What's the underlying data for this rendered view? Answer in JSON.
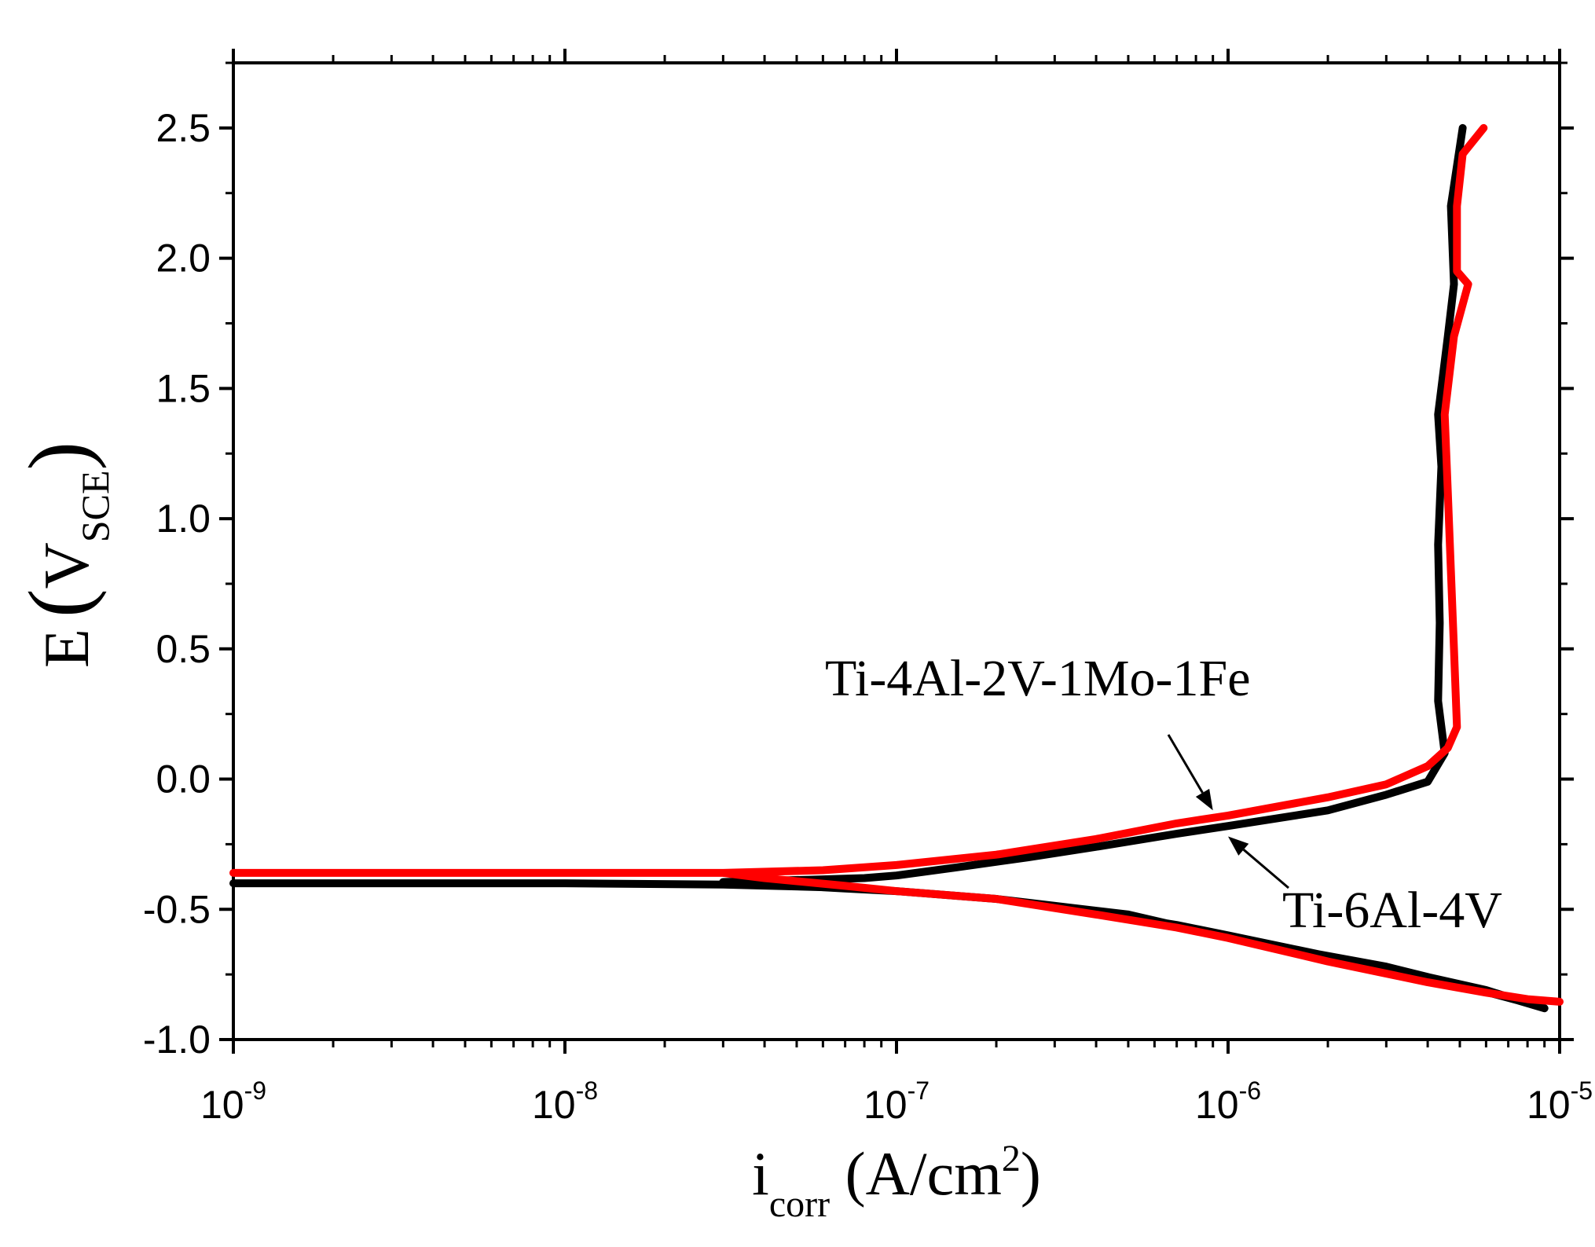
{
  "chart_data": {
    "type": "line",
    "title": "",
    "xlabel": {
      "main": "i",
      "sub": "corr",
      "unit_prefix": " (A/cm",
      "unit_sup": "2",
      "unit_suffix": ")"
    },
    "ylabel": {
      "main": "E",
      "open": "(",
      "var": "V",
      "sub": "SCE",
      "close": ")"
    },
    "xscale": "log",
    "xlim": [
      1e-09,
      1e-05
    ],
    "ylim": [
      -1.0,
      2.75
    ],
    "x_ticks": [
      {
        "value": 1e-09,
        "base": "10",
        "exp": "-9"
      },
      {
        "value": 1e-08,
        "base": "10",
        "exp": "-8"
      },
      {
        "value": 1e-07,
        "base": "10",
        "exp": "-7"
      },
      {
        "value": 1e-06,
        "base": "10",
        "exp": "-6"
      },
      {
        "value": 1e-05,
        "base": "10",
        "exp": "-5"
      }
    ],
    "y_ticks": [
      {
        "value": -1.0,
        "label": "-1.0"
      },
      {
        "value": -0.5,
        "label": "-0.5"
      },
      {
        "value": 0.0,
        "label": "0.0"
      },
      {
        "value": 0.5,
        "label": "0.5"
      },
      {
        "value": 1.0,
        "label": "1.0"
      },
      {
        "value": 1.5,
        "label": "1.5"
      },
      {
        "value": 2.0,
        "label": "2.0"
      },
      {
        "value": 2.5,
        "label": "2.5"
      }
    ],
    "series": [
      {
        "name": "Ti-6Al-4V",
        "color": "#000000",
        "points": [
          [
            1e-09,
            -0.4
          ],
          [
            1e-08,
            -0.4
          ],
          [
            3e-08,
            -0.405
          ],
          [
            6e-08,
            -0.415
          ],
          [
            1e-07,
            -0.43
          ],
          [
            2e-07,
            -0.46
          ],
          [
            4e-07,
            -0.51
          ],
          [
            7e-07,
            -0.56
          ],
          [
            1e-06,
            -0.6
          ],
          [
            2e-06,
            -0.68
          ],
          [
            4e-06,
            -0.76
          ],
          [
            6e-06,
            -0.81
          ],
          [
            8e-06,
            -0.86
          ],
          [
            9e-06,
            -0.88
          ],
          [
            9e-06,
            -0.88
          ],
          [
            7.5e-06,
            -0.85
          ],
          [
            5e-06,
            -0.79
          ],
          [
            3e-06,
            -0.72
          ],
          [
            1.5e-06,
            -0.65
          ],
          [
            8e-07,
            -0.58
          ],
          [
            5e-07,
            -0.52
          ],
          [
            2e-07,
            -0.46
          ],
          [
            1e-07,
            -0.43
          ],
          [
            7e-08,
            -0.42
          ],
          [
            5e-08,
            -0.41
          ],
          [
            3e-08,
            -0.395
          ],
          [
            6e-08,
            -0.385
          ],
          [
            8e-08,
            -0.38
          ],
          [
            1e-07,
            -0.37
          ],
          [
            1.5e-07,
            -0.34
          ],
          [
            2.5e-07,
            -0.3
          ],
          [
            4e-07,
            -0.26
          ],
          [
            7e-07,
            -0.21
          ],
          [
            1e-06,
            -0.18
          ],
          [
            2e-06,
            -0.12
          ],
          [
            3e-06,
            -0.06
          ],
          [
            4e-06,
            -0.01
          ],
          [
            4.5e-06,
            0.1
          ],
          [
            4.3e-06,
            0.3
          ],
          [
            4.35e-06,
            0.6
          ],
          [
            4.3e-06,
            0.9
          ],
          [
            4.4e-06,
            1.2
          ],
          [
            4.3e-06,
            1.4
          ],
          [
            4.6e-06,
            1.7
          ],
          [
            4.8e-06,
            1.9
          ],
          [
            4.7e-06,
            2.2
          ],
          [
            5.1e-06,
            2.5
          ]
        ]
      },
      {
        "name": "Ti-4Al-2V-1Mo-1Fe",
        "color": "#ff0000",
        "points": [
          [
            1e-09,
            -0.36
          ],
          [
            1e-08,
            -0.36
          ],
          [
            3e-08,
            -0.36
          ],
          [
            6e-08,
            -0.35
          ],
          [
            1e-07,
            -0.33
          ],
          [
            2e-07,
            -0.29
          ],
          [
            4e-07,
            -0.23
          ],
          [
            7e-07,
            -0.17
          ],
          [
            1e-06,
            -0.14
          ],
          [
            2e-06,
            -0.07
          ],
          [
            3e-06,
            -0.02
          ],
          [
            4e-06,
            0.05
          ],
          [
            4.6e-06,
            0.12
          ],
          [
            4.9e-06,
            0.2
          ],
          [
            4.8e-06,
            0.5
          ],
          [
            4.7e-06,
            0.8
          ],
          [
            4.6e-06,
            1.1
          ],
          [
            4.5e-06,
            1.4
          ],
          [
            4.8e-06,
            1.7
          ],
          [
            5.3e-06,
            1.9
          ],
          [
            4.9e-06,
            1.95
          ],
          [
            4.9e-06,
            2.2
          ],
          [
            5.1e-06,
            2.4
          ],
          [
            5.9e-06,
            2.5
          ],
          [
            5.9e-06,
            2.5
          ],
          [
            5.1e-06,
            2.4
          ],
          [
            4.9e-06,
            2.2
          ],
          [
            4.9e-06,
            1.95
          ],
          [
            5.3e-06,
            1.9
          ],
          [
            4.8e-06,
            1.7
          ],
          [
            4.5e-06,
            1.4
          ],
          [
            4.6e-06,
            1.1
          ],
          [
            4.7e-06,
            0.8
          ],
          [
            4.8e-06,
            0.5
          ],
          [
            4.9e-06,
            0.2
          ],
          [
            4.6e-06,
            0.12
          ],
          [
            4e-06,
            0.05
          ],
          [
            3e-06,
            -0.02
          ],
          [
            2e-06,
            -0.07
          ],
          [
            1e-06,
            -0.14
          ],
          [
            7e-07,
            -0.17
          ],
          [
            4e-07,
            -0.23
          ],
          [
            2e-07,
            -0.29
          ],
          [
            1e-07,
            -0.33
          ],
          [
            6e-08,
            -0.35
          ],
          [
            3e-08,
            -0.36
          ],
          [
            4e-08,
            -0.38
          ],
          [
            7e-08,
            -0.41
          ],
          [
            1e-07,
            -0.43
          ],
          [
            2e-07,
            -0.46
          ],
          [
            4e-07,
            -0.52
          ],
          [
            7e-07,
            -0.57
          ],
          [
            1e-06,
            -0.61
          ],
          [
            2e-06,
            -0.7
          ],
          [
            4e-06,
            -0.78
          ],
          [
            6e-06,
            -0.82
          ],
          [
            8e-06,
            -0.845
          ],
          [
            1e-05,
            -0.855
          ]
        ]
      }
    ],
    "annotations": [
      {
        "text": "Ti-4Al-2V-1Mo-1Fe",
        "arrow_target": [
          9e-07,
          -0.12
        ]
      },
      {
        "text": "Ti-6Al-4V",
        "arrow_target": [
          1e-06,
          -0.22
        ]
      }
    ],
    "grid": false,
    "legend": "none"
  }
}
